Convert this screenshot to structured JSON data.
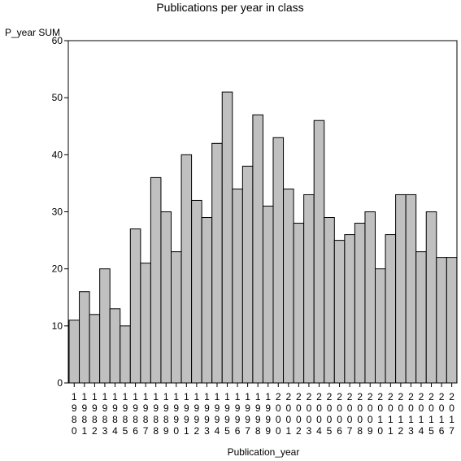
{
  "chart_data": {
    "type": "bar",
    "title": "Publications per year in class",
    "ylabel": "P_year SUM",
    "xlabel": "Publication_year",
    "ylim": [
      0,
      60
    ],
    "yticks": [
      0,
      10,
      20,
      30,
      40,
      50,
      60
    ],
    "grid": false,
    "legend": "none",
    "bar_color": "#c0c0c0",
    "categories": [
      "1980",
      "1981",
      "1982",
      "1983",
      "1984",
      "1985",
      "1986",
      "1987",
      "1988",
      "1989",
      "1990",
      "1991",
      "1992",
      "1993",
      "1994",
      "1995",
      "1996",
      "1997",
      "1998",
      "1999",
      "2000",
      "2001",
      "2002",
      "2003",
      "2004",
      "2005",
      "2006",
      "2007",
      "2008",
      "2009",
      "2010",
      "2011",
      "2012",
      "2013",
      "2014",
      "2015",
      "2016",
      "2017"
    ],
    "values": [
      11,
      16,
      12,
      20,
      13,
      10,
      27,
      21,
      36,
      30,
      23,
      40,
      32,
      29,
      42,
      51,
      34,
      38,
      47,
      31,
      43,
      34,
      28,
      33,
      46,
      29,
      25,
      26,
      28,
      30,
      20,
      26,
      33,
      33,
      23,
      30,
      22,
      22
    ]
  }
}
